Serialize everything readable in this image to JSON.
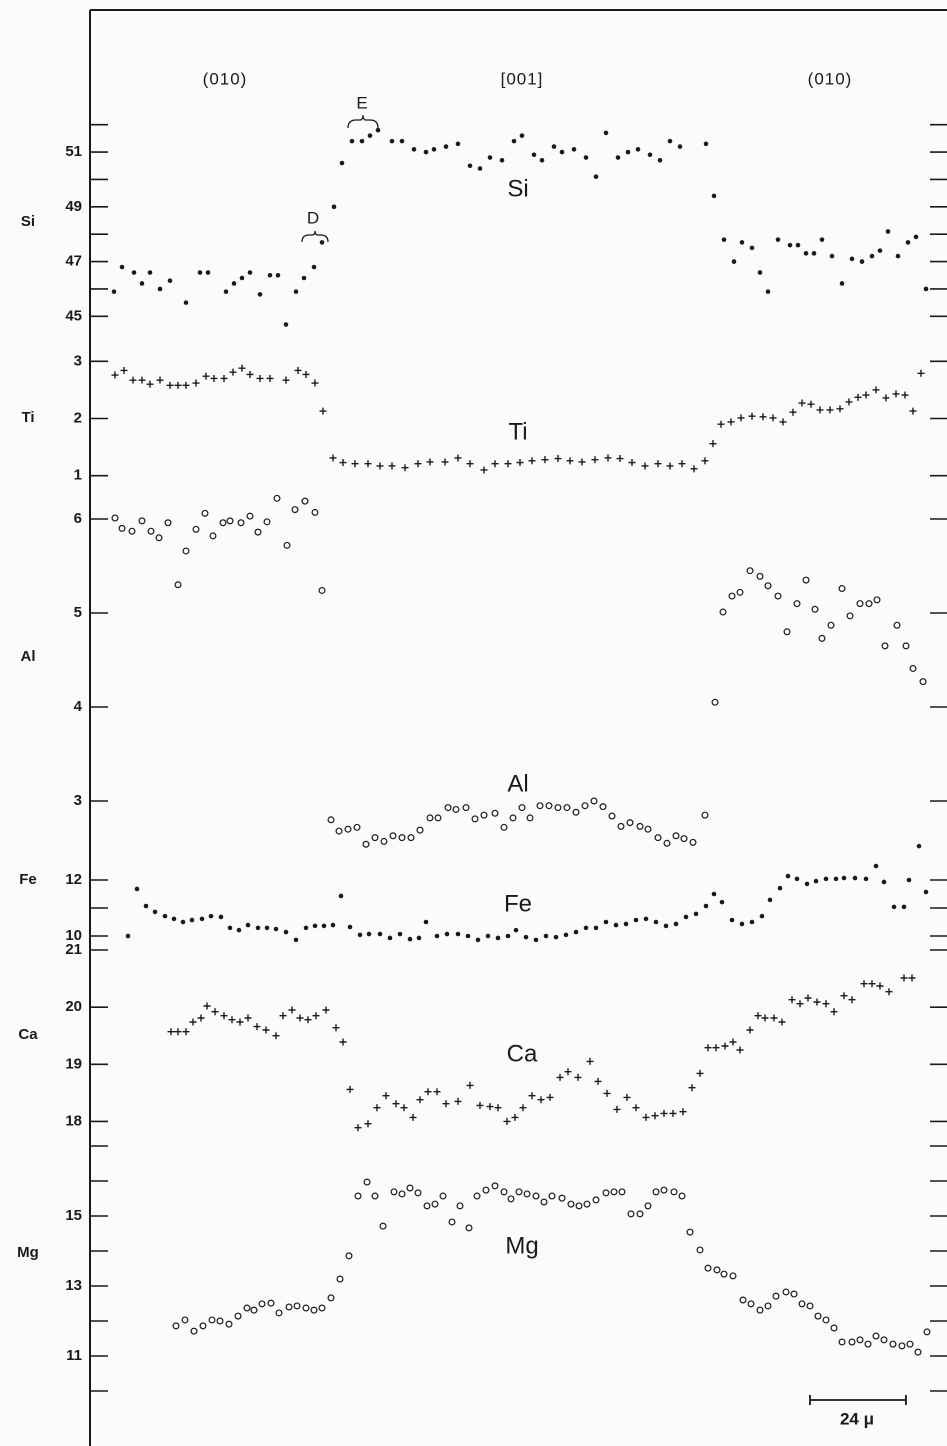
{
  "sections": [
    "(010)",
    "[001]",
    "(010)"
  ],
  "annotations": [
    "E",
    "D"
  ],
  "scale_bar": {
    "value": 24,
    "label": "24 μ"
  },
  "chart_data": [
    {
      "type": "scatter",
      "name": "Si",
      "marker": "dot",
      "color": "#1a1a1a",
      "xlim": [
        0,
        214.25
      ],
      "ylim": [
        44.5,
        52.5
      ],
      "yticks": [
        45,
        47,
        49,
        51
      ],
      "minor_yticks": [
        46,
        48,
        50,
        52
      ],
      "x": [
        6,
        8,
        11,
        13,
        15,
        17.5,
        20,
        24,
        27.5,
        29.5,
        34,
        36,
        38,
        40,
        42.5,
        45,
        47,
        49,
        51.5,
        53.5,
        56,
        58,
        61,
        63,
        65.5,
        68,
        70,
        72,
        75.5,
        78,
        81,
        84,
        86,
        89,
        92,
        95,
        97.5,
        100,
        103,
        106,
        108,
        111,
        113,
        116,
        118,
        121,
        124,
        126.5,
        129,
        132,
        134.5,
        137,
        140,
        142.5,
        145,
        147.5,
        154,
        156,
        158.5,
        161,
        163,
        165.5,
        167.5,
        169.5,
        172,
        175,
        177,
        179,
        181,
        183,
        185.5,
        188,
        190.5,
        193,
        195.5,
        197.5,
        199.5,
        202,
        204.5,
        206.5,
        209
      ],
      "values": [
        45.9,
        46.8,
        46.6,
        46.2,
        46.6,
        46.0,
        46.3,
        45.5,
        46.6,
        46.6,
        45.9,
        46.2,
        46.4,
        46.6,
        45.8,
        46.5,
        46.5,
        44.7,
        45.9,
        46.4,
        46.8,
        47.7,
        49.0,
        50.6,
        51.4,
        51.4,
        51.6,
        51.8,
        51.4,
        51.4,
        51.1,
        51.0,
        51.1,
        51.2,
        51.3,
        50.5,
        50.4,
        50.8,
        50.7,
        51.4,
        51.6,
        50.9,
        50.7,
        51.2,
        51.0,
        51.1,
        50.8,
        50.1,
        51.7,
        50.8,
        51.0,
        51.1,
        50.9,
        50.7,
        51.4,
        51.2,
        51.3,
        49.4,
        47.8,
        47.0,
        47.7,
        47.5,
        46.6,
        45.9,
        47.8,
        47.6,
        47.6,
        47.3,
        47.3,
        47.8,
        47.2,
        46.2,
        47.1,
        47.0,
        47.2,
        47.4,
        48.1,
        47.2,
        47.7,
        47.9,
        46.0
      ]
    },
    {
      "type": "scatter",
      "name": "Ti",
      "marker": "plus",
      "color": "#1a1a1a",
      "xlim": [
        0,
        214.25
      ],
      "ylim": [
        0.75,
        3.25
      ],
      "yticks": [
        1,
        2,
        3
      ],
      "x": [
        6.25,
        8.5,
        10.75,
        13,
        15,
        17.5,
        20,
        22,
        24,
        26.5,
        29,
        31,
        33.5,
        35.75,
        38,
        40,
        42.5,
        45,
        49,
        52,
        54,
        56.25,
        58.25,
        60.75,
        63.25,
        66.25,
        69.5,
        72.5,
        75.5,
        78.75,
        82,
        85,
        88.75,
        92,
        95,
        98.5,
        101.25,
        104.5,
        107.5,
        110.5,
        113.75,
        117,
        120,
        123,
        126.25,
        129.5,
        132.5,
        135.5,
        138.75,
        142,
        145,
        148,
        151,
        153.75,
        155.75,
        157.75,
        160.25,
        162.75,
        165.5,
        168.25,
        170.75,
        173.25,
        175.75,
        178,
        180.25,
        182.5,
        185,
        187.5,
        189.75,
        192,
        194,
        196.5,
        199,
        201.5,
        203.75,
        205.75,
        207.75
      ],
      "values": [
        2.76,
        2.84,
        2.67,
        2.67,
        2.6,
        2.67,
        2.58,
        2.58,
        2.58,
        2.62,
        2.74,
        2.7,
        2.7,
        2.81,
        2.88,
        2.77,
        2.7,
        2.7,
        2.67,
        2.84,
        2.77,
        2.62,
        2.13,
        1.31,
        1.23,
        1.21,
        1.21,
        1.17,
        1.17,
        1.14,
        1.21,
        1.24,
        1.24,
        1.31,
        1.21,
        1.1,
        1.21,
        1.21,
        1.23,
        1.26,
        1.28,
        1.3,
        1.26,
        1.24,
        1.28,
        1.31,
        1.3,
        1.23,
        1.17,
        1.21,
        1.17,
        1.21,
        1.12,
        1.26,
        1.56,
        1.9,
        1.94,
        2.01,
        2.04,
        2.03,
        2.01,
        1.94,
        2.11,
        2.27,
        2.25,
        2.15,
        2.15,
        2.17,
        2.29,
        2.37,
        2.41,
        2.5,
        2.36,
        2.43,
        2.41,
        2.13,
        2.79
      ]
    },
    {
      "type": "scatter",
      "name": "Al",
      "marker": "circle",
      "color": "#1a1a1a",
      "xlim": [
        0,
        214.25
      ],
      "ylim": [
        2.75,
        6.25
      ],
      "yticks": [
        3,
        4,
        5,
        6
      ],
      "x": [
        6.25,
        8,
        10.5,
        13,
        15.25,
        17.25,
        19.5,
        22,
        24,
        26.5,
        28.75,
        30.75,
        33.25,
        35,
        37.75,
        40,
        42,
        44.25,
        46.75,
        49.25,
        51.25,
        53.75,
        56.25,
        58,
        60.25,
        62.25,
        64.5,
        66.75,
        69,
        71.25,
        73.5,
        75.75,
        78,
        80.25,
        82.5,
        85,
        87,
        89.5,
        91.5,
        94,
        96.25,
        98.5,
        101.25,
        103.5,
        105.75,
        108,
        110,
        112.5,
        114.75,
        117,
        119.25,
        121.5,
        123.75,
        126,
        128.25,
        130.5,
        132.75,
        135,
        137.5,
        139.5,
        142,
        144.25,
        146.5,
        148.5,
        150.75,
        153.75,
        156.25,
        158.25,
        160.5,
        162.5,
        165,
        167.5,
        169.5,
        172,
        174.25,
        176.75,
        179,
        181.25,
        183,
        185.25,
        188,
        190,
        192.5,
        194.75,
        196.75,
        198.75,
        201.75,
        204,
        205.75,
        208.25
      ],
      "values": [
        6.01,
        5.9,
        5.87,
        5.98,
        5.87,
        5.8,
        5.96,
        5.3,
        5.66,
        5.89,
        6.06,
        5.82,
        5.96,
        5.98,
        5.96,
        6.03,
        5.86,
        5.97,
        6.22,
        5.72,
        6.1,
        6.19,
        6.07,
        5.24,
        2.8,
        2.68,
        2.7,
        2.72,
        2.54,
        2.61,
        2.57,
        2.63,
        2.61,
        2.61,
        2.69,
        2.82,
        2.82,
        2.93,
        2.91,
        2.93,
        2.81,
        2.85,
        2.87,
        2.72,
        2.82,
        2.93,
        2.82,
        2.95,
        2.95,
        2.93,
        2.93,
        2.88,
        2.95,
        3.0,
        2.94,
        2.84,
        2.73,
        2.77,
        2.73,
        2.7,
        2.61,
        2.55,
        2.63,
        2.6,
        2.56,
        2.85,
        4.05,
        5.01,
        5.18,
        5.22,
        5.45,
        5.39,
        5.29,
        5.18,
        4.8,
        5.1,
        5.35,
        5.04,
        4.73,
        4.87,
        5.26,
        4.97,
        5.1,
        5.1,
        5.14,
        4.65,
        4.87,
        4.65,
        4.41,
        4.27
      ]
    },
    {
      "type": "scatter",
      "name": "Fe",
      "marker": "dot",
      "color": "#1a1a1a",
      "xlim": [
        0,
        214.25
      ],
      "ylim": [
        9.5,
        13.5
      ],
      "yticks": [
        10,
        12
      ],
      "minor_yticks": [
        11
      ],
      "x": [
        9.5,
        11.75,
        14,
        16.25,
        18.75,
        21,
        23.25,
        25.5,
        28,
        30.25,
        32.75,
        35,
        37.25,
        39.5,
        42,
        44.25,
        46.5,
        49,
        51.5,
        54,
        56.25,
        58.5,
        60.75,
        62.75,
        65,
        67.5,
        69.75,
        72.5,
        75,
        77.5,
        80,
        82.25,
        84,
        86.75,
        89.25,
        92,
        94.5,
        97,
        99.5,
        102,
        104.5,
        106.5,
        109,
        111.5,
        114,
        116.5,
        119,
        121.5,
        124,
        126.5,
        129,
        131.5,
        134,
        136.5,
        139,
        141.5,
        144,
        146.5,
        149,
        151.5,
        154,
        156,
        158,
        160.5,
        163,
        165.5,
        168,
        170,
        172.5,
        174.5,
        176.75,
        179.25,
        181.5,
        184,
        186.5,
        188.5,
        191.25,
        194,
        196.5,
        198.5,
        201,
        203.5,
        204.75,
        207.25,
        209
      ],
      "values": [
        10.0,
        11.68,
        11.07,
        10.86,
        10.71,
        10.61,
        10.5,
        10.57,
        10.61,
        10.71,
        10.68,
        10.29,
        10.21,
        10.39,
        10.29,
        10.29,
        10.25,
        10.14,
        9.86,
        10.29,
        10.36,
        10.36,
        10.39,
        11.43,
        10.32,
        10.04,
        10.07,
        10.07,
        9.93,
        10.07,
        9.89,
        9.93,
        10.5,
        10.0,
        10.07,
        10.07,
        10.0,
        9.86,
        10.0,
        9.93,
        10.0,
        10.21,
        9.96,
        9.86,
        10.0,
        9.96,
        10.04,
        10.14,
        10.29,
        10.29,
        10.5,
        10.39,
        10.43,
        10.57,
        10.61,
        10.5,
        10.36,
        10.43,
        10.68,
        10.79,
        11.07,
        11.5,
        11.21,
        10.57,
        10.43,
        10.5,
        10.71,
        11.29,
        11.71,
        12.14,
        12.04,
        11.86,
        11.96,
        12.04,
        12.04,
        12.07,
        12.07,
        12.04,
        12.5,
        11.93,
        11.04,
        11.04,
        12.0,
        13.21,
        11.57
      ]
    },
    {
      "type": "scatter",
      "name": "Ca",
      "marker": "plus",
      "color": "#1a1a1a",
      "xlim": [
        0,
        214.25
      ],
      "ylim": [
        17.5,
        21
      ],
      "yticks": [
        18,
        19,
        20,
        21
      ],
      "x": [
        20.25,
        22,
        24,
        25.75,
        27.75,
        29.25,
        31.25,
        33.5,
        35.5,
        37.5,
        39.5,
        41.75,
        44,
        46.5,
        48.25,
        50.5,
        52.5,
        54.5,
        56.5,
        59,
        61.5,
        63.25,
        65,
        67,
        69.5,
        71.75,
        74,
        76.5,
        78.5,
        80.75,
        82.5,
        84.5,
        86.75,
        89,
        92,
        95,
        97.5,
        100,
        102,
        104.25,
        106.25,
        108.25,
        110.5,
        112.75,
        115,
        117.5,
        119.5,
        122,
        125,
        127,
        129.25,
        131.75,
        134.25,
        136.5,
        139,
        141.25,
        143.5,
        145.75,
        148.25,
        150.5,
        152.5,
        154.5,
        156.5,
        158.75,
        160.75,
        162.5,
        165,
        167,
        168.75,
        171,
        173,
        175.5,
        177.5,
        179.5,
        181.75,
        184,
        186,
        188.5,
        190.5,
        193.5,
        195.5,
        197.5,
        199.75,
        203.5,
        205.5
      ],
      "values": [
        19.57,
        19.57,
        19.57,
        19.74,
        19.81,
        20.02,
        19.92,
        19.85,
        19.78,
        19.74,
        19.81,
        19.66,
        19.6,
        19.5,
        19.85,
        19.95,
        19.81,
        19.78,
        19.85,
        19.95,
        19.64,
        19.39,
        18.56,
        17.89,
        17.96,
        18.24,
        18.45,
        18.31,
        18.24,
        18.07,
        18.38,
        18.52,
        18.52,
        18.31,
        18.35,
        18.63,
        18.28,
        18.26,
        18.24,
        18.0,
        18.07,
        18.24,
        18.45,
        18.38,
        18.42,
        18.77,
        18.87,
        18.77,
        19.05,
        18.7,
        18.49,
        18.21,
        18.42,
        18.24,
        18.07,
        18.1,
        18.14,
        18.14,
        18.17,
        18.59,
        18.84,
        19.29,
        19.29,
        19.32,
        19.39,
        19.25,
        19.6,
        19.85,
        19.81,
        19.81,
        19.74,
        20.13,
        20.06,
        20.16,
        20.09,
        20.06,
        19.92,
        20.2,
        20.13,
        20.41,
        20.41,
        20.37,
        20.27,
        20.51,
        20.51
      ]
    },
    {
      "type": "scatter",
      "name": "Mg",
      "marker": "circle",
      "color": "#1a1a1a",
      "xlim": [
        0,
        214.25
      ],
      "ylim": [
        10,
        17
      ],
      "yticks": [
        11,
        13,
        15
      ],
      "minor_yticks": [
        10,
        12,
        14,
        16,
        17
      ],
      "x": [
        21.5,
        23.75,
        26,
        28.25,
        30.5,
        32.5,
        34.75,
        37,
        39.25,
        41,
        43,
        45.25,
        47.25,
        49.75,
        51.75,
        54,
        56,
        58,
        60.25,
        62.5,
        64.75,
        67,
        69.25,
        71.25,
        73.25,
        76,
        78,
        80,
        82,
        84.25,
        86.25,
        88.25,
        90.5,
        92.5,
        94.75,
        96.75,
        99,
        101.25,
        103.5,
        105.25,
        107.25,
        109.25,
        111.5,
        113.5,
        115.5,
        118,
        120.25,
        122.25,
        124.25,
        126.5,
        129,
        131,
        133,
        135.25,
        137.5,
        139.5,
        141.5,
        143.5,
        146,
        148,
        150,
        152.5,
        154.5,
        156.75,
        158.5,
        160.75,
        163.25,
        165.25,
        167.5,
        169.5,
        171.5,
        174,
        176,
        178,
        180,
        182,
        184,
        186,
        188,
        190.5,
        192.5,
        194.5,
        196.5,
        198.5,
        200.75,
        203,
        205,
        207,
        209.25
      ],
      "values": [
        11.86,
        12.03,
        11.71,
        11.86,
        12.03,
        12.0,
        11.91,
        12.14,
        12.37,
        12.31,
        12.49,
        12.51,
        12.23,
        12.4,
        12.43,
        12.37,
        12.31,
        12.37,
        12.66,
        13.2,
        13.86,
        15.57,
        15.97,
        15.57,
        14.71,
        15.69,
        15.63,
        15.8,
        15.66,
        15.29,
        15.34,
        15.57,
        14.83,
        15.29,
        14.66,
        15.57,
        15.74,
        15.86,
        15.69,
        15.49,
        15.69,
        15.63,
        15.57,
        15.4,
        15.57,
        15.51,
        15.34,
        15.29,
        15.34,
        15.46,
        15.66,
        15.69,
        15.69,
        15.06,
        15.06,
        15.29,
        15.69,
        15.74,
        15.69,
        15.57,
        14.54,
        14.03,
        13.51,
        13.46,
        13.34,
        13.29,
        12.6,
        12.49,
        12.31,
        12.43,
        12.71,
        12.83,
        12.77,
        12.49,
        12.43,
        12.14,
        12.03,
        11.8,
        11.4,
        11.4,
        11.46,
        11.34,
        11.57,
        11.46,
        11.34,
        11.29,
        11.34,
        11.11,
        11.69
      ]
    }
  ]
}
